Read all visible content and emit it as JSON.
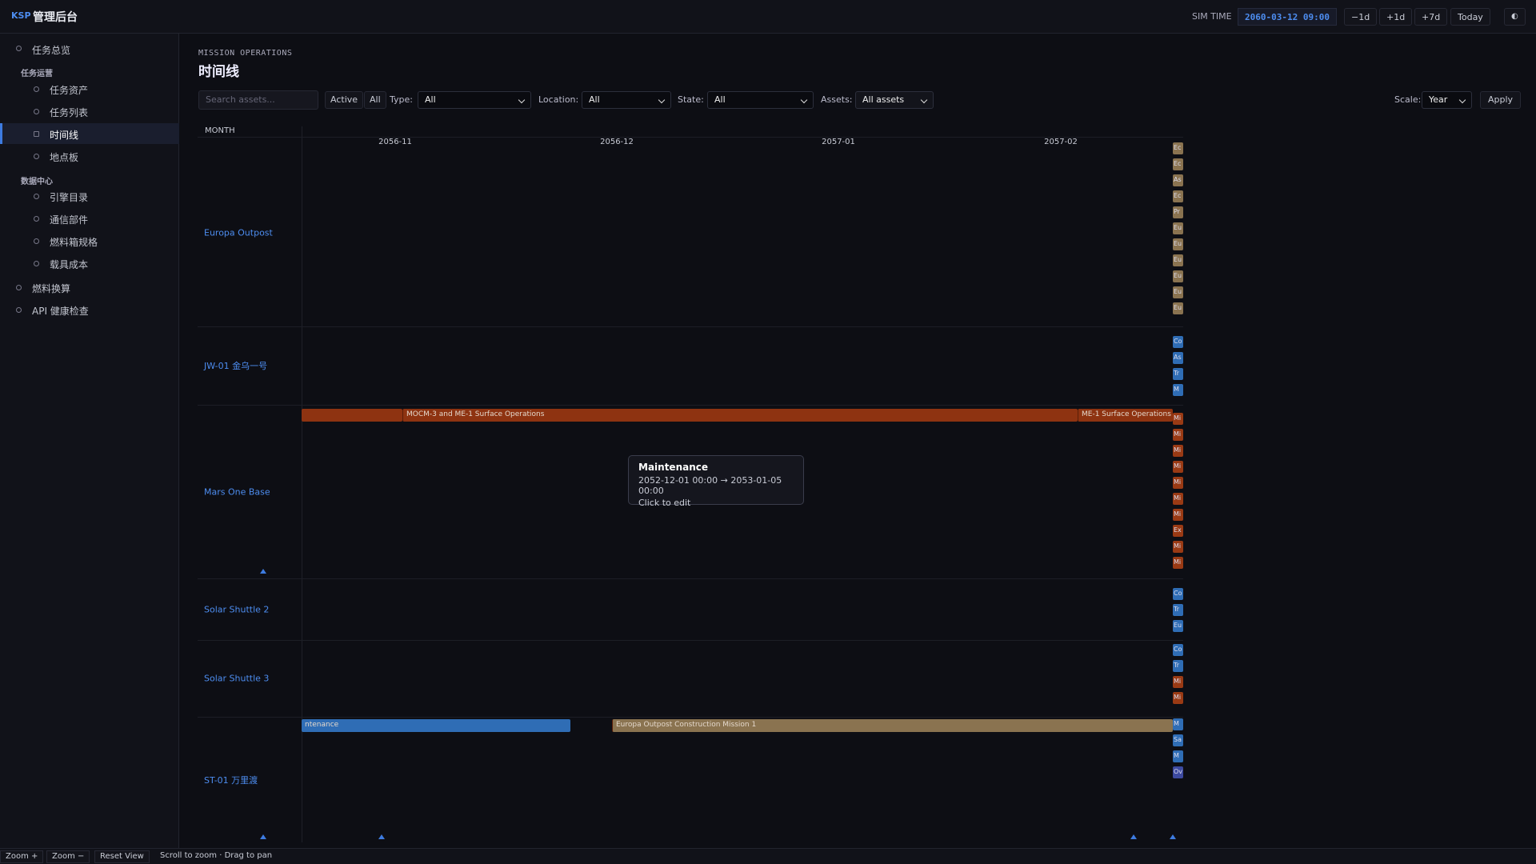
{
  "topbar": {
    "brand": "KSP",
    "title": "管理后台",
    "sim_time_label": "SIM TIME",
    "sim_time": "2060-03-12 09:00",
    "buttons": [
      "−1d",
      "+1d",
      "+7d",
      "Today",
      "◐"
    ]
  },
  "sidebar": {
    "top": [
      "任务总览"
    ],
    "groups": [
      {
        "title": "任务运营",
        "items": [
          "任务资产",
          "任务列表",
          "时间线",
          "地点板"
        ]
      },
      {
        "title": "数据中心",
        "items": [
          "引擎目录",
          "通信部件",
          "燃料箱规格",
          "载具成本"
        ]
      }
    ],
    "bottom": [
      "燃料换算",
      "API 健康检查"
    ],
    "active": "时间线"
  },
  "page": {
    "eyebrow": "MISSION OPERATIONS",
    "title": "时间线"
  },
  "filters": {
    "search_placeholder": "Search assets...",
    "toggles": [
      "Active",
      "All"
    ],
    "type_label": "Type:",
    "type_value": "All",
    "location_label": "Location:",
    "location_value": "All",
    "state_label": "State:",
    "state_value": "All",
    "assets_label": "Assets:",
    "assets_value": "All assets",
    "scale_label": "Scale:",
    "scale_value": "Year",
    "apply": "Apply"
  },
  "timeline": {
    "header": "MONTH",
    "months": [
      "2056-11",
      "2056-12",
      "2057-01",
      "2057-02"
    ],
    "rows": [
      {
        "name": "Europa Outpost",
        "bars": [],
        "chips": {
          "color": "#8a7350",
          "labels": [
            "Ec",
            "Ec",
            "As",
            "Ec",
            "Pr",
            "Eu",
            "Eu",
            "Eu",
            "Eu",
            "Eu",
            "Eu"
          ]
        }
      },
      {
        "name": "JW-01 金乌一号",
        "bars": [],
        "chips": {
          "color": "#2f6db5",
          "labels": [
            "Co",
            "As",
            "Tr",
            "M"
          ]
        }
      },
      {
        "name": "Mars One Base",
        "bars": [
          {
            "color": "#8e3311"
          },
          {
            "label": "MOCM-3 and ME-1 Surface Operations",
            "color": "#8e3311"
          },
          {
            "label": "ME-1 Surface Operations",
            "color": "#8e3311"
          }
        ],
        "chips": {
          "color": "#9a3a14",
          "labels": [
            "Mi",
            "Mi",
            "Mi",
            "Mi",
            "Mi",
            "Mi",
            "Mi",
            "Ex",
            "Mi",
            "Mi"
          ]
        }
      },
      {
        "name": "Solar Shuttle 2",
        "bars": [],
        "chips": {
          "color": "#2f6db5",
          "labels": [
            "Co",
            "Tr",
            "Eu"
          ]
        }
      },
      {
        "name": "Solar Shuttle 3",
        "bars": [],
        "chips": {
          "color": "#2f6db5",
          "labels": [
            "Co",
            "Tr",
            "Mi",
            "Mi"
          ]
        }
      },
      {
        "name": "ST-01 万里渡",
        "bars": [
          {
            "label": "ntenance",
            "color": "#2f6db5"
          },
          {
            "label": "Europa Outpost Construction Mission 1",
            "color": "#8a7350"
          }
        ],
        "chips": {
          "color": "#2f6db5",
          "labels": [
            "M",
            "Sa",
            "M",
            "Ov"
          ]
        }
      }
    ]
  },
  "tooltip": {
    "title": "Maintenance",
    "range": "2052-12-01 00:00 → 2053-01-05 00:00",
    "hint": "Click to edit"
  },
  "footer": {
    "buttons": [
      "Zoom +",
      "Zoom −",
      "Reset View"
    ],
    "hint": "Scroll to zoom · Drag to pan"
  }
}
